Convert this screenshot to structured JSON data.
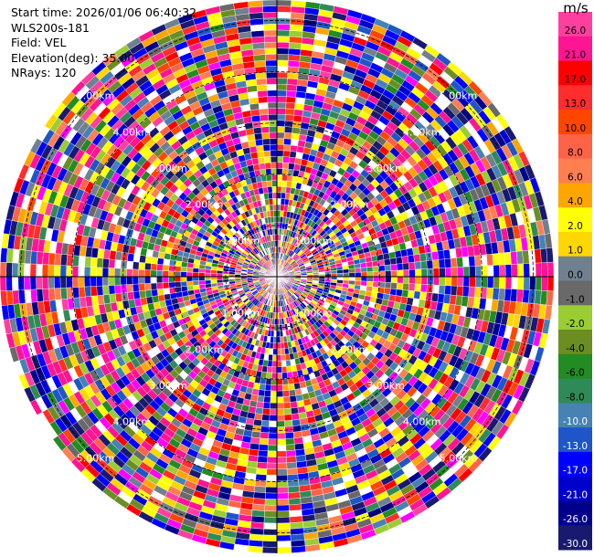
{
  "header": {
    "start_time": "Start time: 2026/01/06 06:40:32",
    "station": "WLS200s-181",
    "field": "Field: VEL",
    "elevation": "Elevation(deg): 35.00",
    "nrays": "NRays: 120"
  },
  "colorbar": {
    "unit": "m/s",
    "levels": [
      {
        "label": "26.0",
        "color": "#ff3fa0"
      },
      {
        "label": "21.0",
        "color": "#ff1493"
      },
      {
        "label": "17.0",
        "color": "#ff0000"
      },
      {
        "label": "13.0",
        "color": "#ff2d2d"
      },
      {
        "label": "10.0",
        "color": "#ff4500"
      },
      {
        "label": "8.0",
        "color": "#ff6347"
      },
      {
        "label": "6.0",
        "color": "#ff7f50"
      },
      {
        "label": "4.0",
        "color": "#ffa500"
      },
      {
        "label": "2.0",
        "color": "#ffff00"
      },
      {
        "label": "1.0",
        "color": "#ffd700"
      },
      {
        "label": "0.0",
        "color": "#708090"
      },
      {
        "label": "-1.0",
        "color": "#696969"
      },
      {
        "label": "-2.0",
        "color": "#9acd32"
      },
      {
        "label": "-4.0",
        "color": "#6b8e23"
      },
      {
        "label": "-6.0",
        "color": "#228b22"
      },
      {
        "label": "-8.0",
        "color": "#2e8b57"
      },
      {
        "label": "-10.0",
        "color": "#4682b4"
      },
      {
        "label": "-13.0",
        "color": "#1e56c8"
      },
      {
        "label": "-17.0",
        "color": "#0000ff"
      },
      {
        "label": "-21.0",
        "color": "#0000cd"
      },
      {
        "label": "-26.0",
        "color": "#00008b"
      },
      {
        "label": "-30.0",
        "color": "#191970"
      }
    ]
  },
  "chart_data": {
    "type": "heatmap",
    "subtype": "ppi-polar",
    "field": "VEL",
    "nrays": 120,
    "ring_labels": [
      "1.00km",
      "2.00km",
      "3.00km",
      "4.00km",
      "5.00km"
    ],
    "ring_radii_km": [
      1,
      2,
      3,
      4,
      5
    ],
    "max_range_km": 5.4,
    "value_range": [
      -30,
      26
    ],
    "note_values": "values are noisy / unresolved; rendered as scattered color bins"
  }
}
